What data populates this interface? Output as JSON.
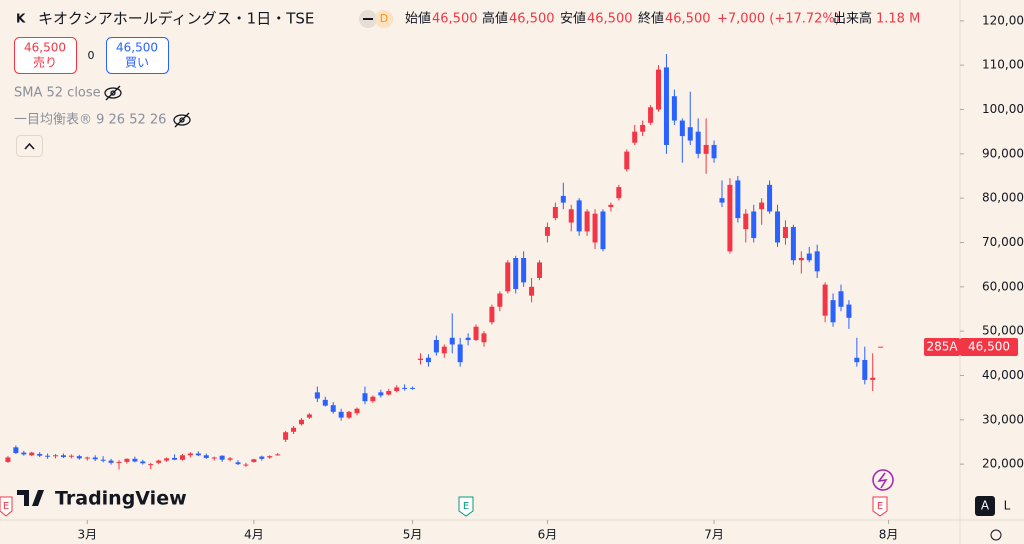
{
  "header": {
    "symbol_title": "キオクシアホールディングス・1日・TSE",
    "badge": "D",
    "legend": [
      {
        "label": "始値",
        "value": "46,500"
      },
      {
        "label": "高値",
        "value": "46,500"
      },
      {
        "label": "安値",
        "value": "46,500"
      },
      {
        "label": "終値",
        "value": "46,500"
      }
    ],
    "change": "+7,000 (+17.72%)",
    "volume_label": "出来高",
    "volume": "1.18 M"
  },
  "trade": {
    "sell_price": "46,500",
    "sell": "売り",
    "spread": "0",
    "buy_price": "46,500",
    "buy": "買い"
  },
  "indicators": [
    "SMA 52 close",
    "一目均衡表® 9 26 52 26"
  ],
  "price_tag": {
    "symbol": "285A",
    "price": "46,500"
  },
  "brand": "TradingView",
  "scale_buttons": [
    "A",
    "L"
  ],
  "event_marker": "E",
  "chart_data": {
    "type": "candlestick",
    "up_color": "#f23645",
    "down_color": "#2962ff",
    "xlim": [
      -1,
      120
    ],
    "xticks": [
      {
        "value": 10,
        "label": "3月"
      },
      {
        "value": 31,
        "label": "4月"
      },
      {
        "value": 51,
        "label": "5月"
      },
      {
        "value": 68,
        "label": "6月"
      },
      {
        "value": 89,
        "label": "7月"
      },
      {
        "value": 111,
        "label": "8月"
      }
    ],
    "ylim": [
      7400,
      124700
    ],
    "yticks": [
      {
        "value": 20000,
        "label": "20,000"
      },
      {
        "value": 30000,
        "label": "30,000"
      },
      {
        "value": 40000,
        "label": "40,000"
      },
      {
        "value": 50000,
        "label": "50,000"
      },
      {
        "value": 60000,
        "label": "60,000"
      },
      {
        "value": 70000,
        "label": "70,000"
      },
      {
        "value": 80000,
        "label": "80,000"
      },
      {
        "value": 90000,
        "label": "90,000"
      },
      {
        "value": 100000,
        "label": "100,000"
      },
      {
        "value": 110000,
        "label": "110,000"
      },
      {
        "value": 120000,
        "label": "120,000"
      }
    ],
    "candles": [
      [
        20500,
        21800,
        20300,
        21500
      ],
      [
        23800,
        24200,
        22300,
        22500
      ],
      [
        22600,
        23000,
        21900,
        22200
      ],
      [
        22000,
        22800,
        21800,
        22600
      ],
      [
        22300,
        22700,
        21600,
        21900
      ],
      [
        21900,
        22400,
        21200,
        21700
      ],
      [
        21800,
        22300,
        21300,
        22000
      ],
      [
        22000,
        22400,
        21400,
        21600
      ],
      [
        21700,
        22200,
        21300,
        21900
      ],
      [
        21800,
        22100,
        21000,
        21300
      ],
      [
        21300,
        21700,
        20800,
        21500
      ],
      [
        21500,
        22000,
        20700,
        21100
      ],
      [
        21000,
        21800,
        20400,
        20800
      ],
      [
        20800,
        21200,
        19900,
        20300
      ],
      [
        20300,
        20900,
        18800,
        20500
      ],
      [
        20500,
        21300,
        20100,
        21200
      ],
      [
        21200,
        21700,
        20400,
        20600
      ],
      [
        20600,
        21000,
        19900,
        20200
      ],
      [
        19800,
        20300,
        18900,
        20000
      ],
      [
        20300,
        21000,
        20000,
        20800
      ],
      [
        20800,
        21500,
        20500,
        21300
      ],
      [
        21400,
        22200,
        20900,
        21000
      ],
      [
        21000,
        22300,
        20800,
        22000
      ],
      [
        22000,
        22700,
        21500,
        22400
      ],
      [
        22400,
        22900,
        21800,
        22000
      ],
      [
        22000,
        22400,
        21200,
        21400
      ],
      [
        21400,
        21700,
        20800,
        21500
      ],
      [
        21900,
        22000,
        20500,
        21000
      ],
      [
        21000,
        21600,
        20600,
        21300
      ],
      [
        20400,
        20900,
        19800,
        20000
      ],
      [
        19800,
        20300,
        19400,
        19900
      ],
      [
        20500,
        21200,
        20300,
        21100
      ],
      [
        21700,
        21900,
        20800,
        21200
      ],
      [
        21500,
        22000,
        21200,
        21800
      ],
      [
        22000,
        22500,
        21900,
        22200
      ],
      [
        25500,
        27500,
        25000,
        27200
      ],
      [
        27300,
        28600,
        26800,
        28200
      ],
      [
        29000,
        30400,
        28700,
        30000
      ],
      [
        30500,
        31500,
        30200,
        31200
      ],
      [
        36200,
        37500,
        34000,
        34800
      ],
      [
        34500,
        35200,
        33000,
        33200
      ],
      [
        33300,
        34000,
        31400,
        31800
      ],
      [
        31800,
        32500,
        29800,
        30500
      ],
      [
        30500,
        32000,
        30200,
        31800
      ],
      [
        31500,
        32800,
        31000,
        32500
      ],
      [
        36000,
        37500,
        33500,
        34200
      ],
      [
        34200,
        35500,
        33800,
        35200
      ],
      [
        36200,
        36800,
        35000,
        35500
      ],
      [
        35700,
        37000,
        35500,
        36500
      ],
      [
        36500,
        37800,
        36200,
        37300
      ],
      [
        37200,
        38000,
        36600,
        37000
      ],
      [
        37200,
        37500,
        36800,
        37000
      ],
      [
        43500,
        45000,
        42500,
        43800
      ],
      [
        44000,
        44800,
        42000,
        43000
      ],
      [
        48000,
        49000,
        44500,
        45200
      ],
      [
        45000,
        47000,
        44000,
        46500
      ],
      [
        48500,
        54000,
        45000,
        47000
      ],
      [
        47000,
        48500,
        42000,
        43000
      ],
      [
        48500,
        49500,
        46800,
        48000
      ],
      [
        48000,
        51500,
        47800,
        51000
      ],
      [
        47500,
        50000,
        46500,
        49500
      ],
      [
        52000,
        56000,
        51500,
        55500
      ],
      [
        55500,
        59000,
        54500,
        58500
      ],
      [
        59000,
        66000,
        58500,
        65500
      ],
      [
        66500,
        67000,
        58500,
        59500
      ],
      [
        66500,
        68000,
        60000,
        61000
      ],
      [
        58000,
        62000,
        56500,
        60000
      ],
      [
        62000,
        66000,
        61500,
        65500
      ],
      [
        71500,
        74500,
        70000,
        73500
      ],
      [
        75500,
        79000,
        75000,
        78000
      ],
      [
        80500,
        83500,
        77500,
        79000
      ],
      [
        74500,
        78500,
        72500,
        77500
      ],
      [
        79500,
        80000,
        71500,
        72500
      ],
      [
        72500,
        77500,
        71500,
        77000
      ],
      [
        70000,
        77500,
        68500,
        76500
      ],
      [
        77000,
        77500,
        68000,
        68500
      ],
      [
        78000,
        79000,
        77000,
        78500
      ],
      [
        80000,
        83000,
        79500,
        82500
      ],
      [
        86500,
        91000,
        86000,
        90500
      ],
      [
        92500,
        96500,
        92000,
        95000
      ],
      [
        95000,
        97500,
        94000,
        96500
      ],
      [
        97000,
        101000,
        96500,
        100500
      ],
      [
        100000,
        110000,
        99500,
        109000
      ],
      [
        109500,
        112500,
        90000,
        92000
      ],
      [
        103000,
        104500,
        96500,
        97500
      ],
      [
        97500,
        98000,
        88000,
        94000
      ],
      [
        96000,
        104000,
        92000,
        93000
      ],
      [
        95000,
        98000,
        89000,
        90000
      ],
      [
        90000,
        98000,
        85500,
        92000
      ],
      [
        92000,
        93000,
        88000,
        89000
      ],
      [
        80000,
        84000,
        78000,
        79000
      ],
      [
        68000,
        84500,
        67500,
        83000
      ],
      [
        84000,
        85000,
        74500,
        75500
      ],
      [
        73000,
        77500,
        70000,
        76500
      ],
      [
        77000,
        78500,
        70000,
        71000
      ],
      [
        77500,
        80000,
        74000,
        79000
      ],
      [
        83000,
        84000,
        76500,
        77000
      ],
      [
        77000,
        78500,
        69000,
        70000
      ],
      [
        71000,
        75000,
        69500,
        73500
      ],
      [
        73500,
        74000,
        65000,
        66000
      ],
      [
        66000,
        68000,
        63000,
        66500
      ],
      [
        67500,
        69000,
        65500,
        66000
      ],
      [
        68000,
        69500,
        62000,
        63500
      ],
      [
        53500,
        61000,
        52000,
        60500
      ],
      [
        57000,
        58500,
        51000,
        52000
      ],
      [
        59000,
        60500,
        54500,
        55500
      ],
      [
        56000,
        57000,
        50500,
        53000
      ],
      [
        44000,
        48500,
        42000,
        43000
      ],
      [
        43500,
        46500,
        38000,
        39000
      ],
      [
        39000,
        45000,
        36500,
        39500
      ],
      [
        46500,
        46500,
        46500,
        46500
      ]
    ]
  }
}
